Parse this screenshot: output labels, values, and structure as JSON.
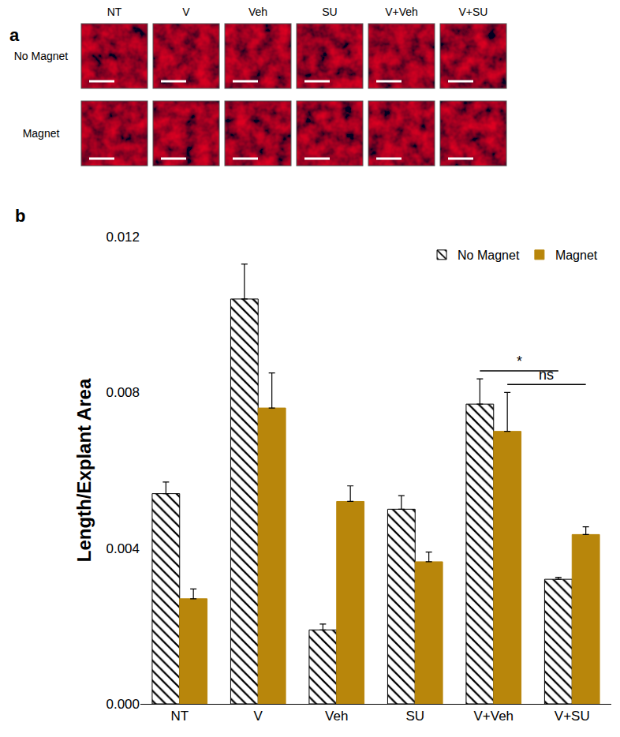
{
  "panel_a": {
    "label": "a",
    "columns": [
      "NT",
      "V",
      "Veh",
      "SU",
      "V+Veh",
      "V+SU"
    ],
    "rows": [
      "No Magnet",
      "Magnet"
    ]
  },
  "chart_data": {
    "type": "bar",
    "panel_label": "b",
    "y_label": "Length/Explant Area",
    "categories": [
      "NT",
      "V",
      "Veh",
      "SU",
      "V+Veh",
      "V+SU"
    ],
    "series": [
      {
        "name": "No Magnet",
        "color": "#000000",
        "marker": "hatch",
        "values": [
          0.0054,
          0.0104,
          0.0019,
          0.005,
          0.0077,
          0.0032
        ],
        "errors": [
          0.0003,
          0.0009,
          0.00015,
          0.00035,
          0.00065,
          5e-05
        ]
      },
      {
        "name": "Magnet",
        "color": "#b8860b",
        "values": [
          0.0027,
          0.0076,
          0.0052,
          0.00365,
          0.007,
          0.00435
        ],
        "errors": [
          0.00025,
          0.0009,
          0.0004,
          0.00025,
          0.001,
          0.0002
        ]
      }
    ],
    "ylim": [
      0,
      0.012
    ],
    "yticks": [
      {
        "value": 0,
        "label": "0.000"
      },
      0.004,
      0.008,
      0.012
    ],
    "grid": false,
    "legend": "upper right",
    "annotations": [
      {
        "text": "*",
        "series": "No Magnet",
        "from": "V+Veh",
        "to": "V+SU"
      },
      {
        "text": "ns",
        "series": "Magnet",
        "from": "V+Veh",
        "to": "V+SU"
      }
    ]
  }
}
